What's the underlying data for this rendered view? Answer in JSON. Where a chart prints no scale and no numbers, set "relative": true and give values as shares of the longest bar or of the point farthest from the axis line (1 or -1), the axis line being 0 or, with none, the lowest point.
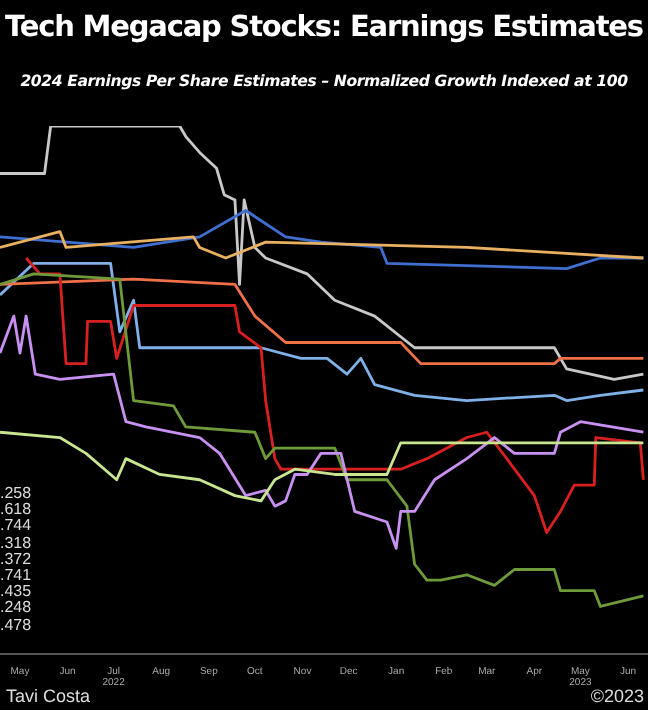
{
  "chart_data": {
    "type": "line",
    "title": "Tech Megacap Stocks: Earnings Estimates",
    "subtitle": "2024 Earnings Per Share Estimates – Normalized Growth Indexed at 100",
    "relative": true,
    "annotations": [
      ".258",
      ".618",
      ".744",
      ".318",
      ".372",
      ".741",
      ".435",
      ".248",
      ".478",
      "Tavi Costa",
      "©2023"
    ],
    "xlim": [
      "2022-05-02",
      "2023-06-28"
    ],
    "xticks": [
      {
        "value": "2022-05-15",
        "label": "May"
      },
      {
        "value": "2022-06-15",
        "label": "Jun"
      },
      {
        "value": "2022-07-15",
        "label": "Jul\n2022"
      },
      {
        "value": "2022-08-15",
        "label": "Aug"
      },
      {
        "value": "2022-09-15",
        "label": "Sep"
      },
      {
        "value": "2022-10-15",
        "label": "Oct"
      },
      {
        "value": "2022-11-15",
        "label": "Nov"
      },
      {
        "value": "2022-12-15",
        "label": "Dec"
      },
      {
        "value": "2023-01-15",
        "label": "Jan"
      },
      {
        "value": "2023-02-15",
        "label": "Feb"
      },
      {
        "value": "2023-03-15",
        "label": "Mar"
      },
      {
        "value": "2023-04-15",
        "label": "Apr"
      },
      {
        "value": "2023-05-15",
        "label": "May\n2023"
      },
      {
        "value": "2023-06-15",
        "label": "Jun"
      }
    ],
    "series": [
      {
        "color": "#c8c8c8",
        "x": [
          "2022-05-02",
          "2022-05-31",
          "2022-06-04",
          "2022-08-27",
          "2022-08-31",
          "2022-09-09",
          "2022-09-20",
          "2022-09-25",
          "2022-10-02",
          "2022-10-05",
          "2022-10-08",
          "2022-10-15",
          "2022-10-22",
          "2022-11-18",
          "2022-12-06",
          "2023-01-01",
          "2023-01-27",
          "2023-04-28",
          "2023-05-06",
          "2023-06-06",
          "2023-06-25"
        ],
        "values": [
          0.91,
          0.91,
          1.0,
          1.0,
          0.98,
          0.95,
          0.92,
          0.87,
          0.86,
          0.7,
          0.86,
          0.77,
          0.75,
          0.72,
          0.67,
          0.64,
          0.58,
          0.58,
          0.54,
          0.52,
          0.53
        ]
      },
      {
        "color": "#3f6fd0",
        "x": [
          "2022-05-02",
          "2022-07-28",
          "2022-09-09",
          "2022-10-09",
          "2022-11-04",
          "2022-11-27",
          "2023-01-05",
          "2023-01-09",
          "2023-05-06",
          "2023-05-28",
          "2023-06-25"
        ],
        "values": [
          0.79,
          0.77,
          0.79,
          0.84,
          0.79,
          0.78,
          0.77,
          0.74,
          0.73,
          0.75,
          0.75
        ]
      },
      {
        "color": "#e8b060",
        "x": [
          "2022-05-02",
          "2022-06-10",
          "2022-06-14",
          "2022-09-05",
          "2022-09-09",
          "2022-09-26",
          "2022-10-22",
          "2023-03-02",
          "2023-06-25"
        ],
        "values": [
          0.77,
          0.8,
          0.77,
          0.79,
          0.77,
          0.75,
          0.78,
          0.77,
          0.75
        ]
      },
      {
        "color": "#7fb0e8",
        "x": [
          "2022-05-02",
          "2022-05-24",
          "2022-07-13",
          "2022-07-19",
          "2022-07-28",
          "2022-08-01",
          "2022-10-19",
          "2022-11-14",
          "2022-12-01",
          "2022-12-14",
          "2022-12-23",
          "2023-01-01",
          "2023-01-27",
          "2023-03-02",
          "2023-04-28",
          "2023-05-06",
          "2023-05-28",
          "2023-06-25"
        ],
        "values": [
          0.68,
          0.74,
          0.74,
          0.61,
          0.67,
          0.58,
          0.58,
          0.56,
          0.56,
          0.53,
          0.56,
          0.51,
          0.49,
          0.48,
          0.49,
          0.48,
          0.49,
          0.5
        ]
      },
      {
        "color": "#f07048",
        "x": [
          "2022-05-02",
          "2022-07-28",
          "2022-10-02",
          "2022-10-15",
          "2022-11-04",
          "2023-01-18",
          "2023-01-31",
          "2023-04-28",
          "2023-05-02",
          "2023-06-25"
        ],
        "values": [
          0.7,
          0.71,
          0.7,
          0.64,
          0.59,
          0.59,
          0.55,
          0.55,
          0.56,
          0.56
        ]
      },
      {
        "color": "#d82020",
        "x": [
          "2022-05-19",
          "2022-05-28",
          "2022-06-10",
          "2022-06-14",
          "2022-06-27",
          "2022-06-28",
          "2022-07-13",
          "2022-07-17",
          "2022-07-28",
          "2022-10-02",
          "2022-10-05",
          "2022-10-19",
          "2022-10-22",
          "2022-10-28",
          "2022-11-01",
          "2023-01-18",
          "2023-02-04",
          "2023-03-02",
          "2023-03-15",
          "2023-03-28",
          "2023-04-15",
          "2023-04-23",
          "2023-05-02",
          "2023-05-11",
          "2023-05-24",
          "2023-05-25",
          "2023-06-23",
          "2023-06-25"
        ],
        "values": [
          0.75,
          0.72,
          0.72,
          0.55,
          0.55,
          0.63,
          0.63,
          0.56,
          0.66,
          0.66,
          0.61,
          0.58,
          0.48,
          0.37,
          0.35,
          0.35,
          0.37,
          0.41,
          0.42,
          0.37,
          0.3,
          0.23,
          0.27,
          0.32,
          0.32,
          0.41,
          0.4,
          0.33
        ]
      },
      {
        "color": "#6f9a3a",
        "x": [
          "2022-05-02",
          "2022-05-24",
          "2022-07-19",
          "2022-07-28",
          "2022-08-23",
          "2022-08-31",
          "2022-10-15",
          "2022-10-22",
          "2022-10-28",
          "2022-12-06",
          "2022-12-14",
          "2023-01-09",
          "2023-01-22",
          "2023-01-27",
          "2023-02-04",
          "2023-02-13",
          "2023-03-02",
          "2023-03-20",
          "2023-04-02",
          "2023-04-28",
          "2023-05-02",
          "2023-05-24",
          "2023-05-28",
          "2023-06-25"
        ],
        "values": [
          0.7,
          0.72,
          0.71,
          0.48,
          0.47,
          0.43,
          0.42,
          0.37,
          0.39,
          0.39,
          0.33,
          0.33,
          0.28,
          0.17,
          0.14,
          0.14,
          0.15,
          0.13,
          0.16,
          0.16,
          0.12,
          0.12,
          0.09,
          0.11
        ]
      },
      {
        "color": "#c890f0",
        "x": [
          "2022-05-02",
          "2022-05-11",
          "2022-05-15",
          "2022-05-19",
          "2022-05-25",
          "2022-06-10",
          "2022-07-15",
          "2022-07-23",
          "2022-08-05",
          "2022-09-09",
          "2022-09-22",
          "2022-10-09",
          "2022-10-22",
          "2022-10-28",
          "2022-11-04",
          "2022-11-10",
          "2022-11-18",
          "2022-11-27",
          "2022-12-10",
          "2022-12-19",
          "2023-01-09",
          "2023-01-15",
          "2023-01-18",
          "2023-01-27",
          "2023-02-09",
          "2023-03-02",
          "2023-03-20",
          "2023-04-02",
          "2023-04-28",
          "2023-05-02",
          "2023-05-15",
          "2023-06-25"
        ],
        "values": [
          0.57,
          0.64,
          0.57,
          0.64,
          0.53,
          0.52,
          0.53,
          0.44,
          0.43,
          0.41,
          0.38,
          0.3,
          0.31,
          0.28,
          0.29,
          0.34,
          0.34,
          0.38,
          0.38,
          0.27,
          0.25,
          0.2,
          0.27,
          0.27,
          0.33,
          0.37,
          0.41,
          0.38,
          0.38,
          0.42,
          0.44,
          0.42
        ]
      },
      {
        "color": "#c8e690",
        "x": [
          "2022-05-02",
          "2022-06-10",
          "2022-06-27",
          "2022-07-17",
          "2022-07-23",
          "2022-08-14",
          "2022-09-09",
          "2022-10-02",
          "2022-10-19",
          "2022-10-28",
          "2022-11-10",
          "2022-12-06",
          "2023-01-09",
          "2023-01-18",
          "2023-06-25"
        ],
        "values": [
          0.42,
          0.41,
          0.38,
          0.33,
          0.37,
          0.34,
          0.33,
          0.3,
          0.29,
          0.33,
          0.35,
          0.34,
          0.34,
          0.4,
          0.4
        ]
      }
    ]
  }
}
